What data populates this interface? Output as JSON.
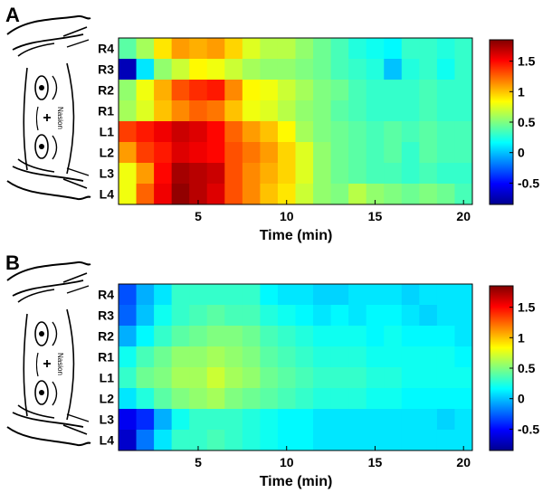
{
  "chart_data": [
    {
      "type": "heatmap",
      "panel_label": "A",
      "xlabel": "Time (min)",
      "x_ticks": [
        "5",
        "10",
        "15",
        "20"
      ],
      "x_range": [
        0.5,
        20.5
      ],
      "rows": [
        "R4",
        "R3",
        "R2",
        "R1",
        "L1",
        "L2",
        "L3",
        "L4"
      ],
      "colorbar": {
        "min": -0.85,
        "max": 1.85,
        "ticks": [
          "1.5",
          "1",
          "0.5",
          "0",
          "-0.5"
        ],
        "colormap": "jet"
      },
      "values": [
        [
          0.4,
          0.6,
          0.9,
          1.1,
          1.05,
          1.1,
          0.95,
          0.75,
          0.65,
          0.65,
          0.55,
          0.45,
          0.35,
          0.25,
          0.2,
          0.15,
          0.3,
          0.3,
          0.25,
          0.3
        ],
        [
          -0.7,
          0.1,
          0.55,
          0.7,
          0.85,
          0.8,
          0.7,
          0.6,
          0.55,
          0.55,
          0.5,
          0.45,
          0.35,
          0.3,
          0.25,
          0.0,
          0.25,
          0.3,
          0.2,
          0.3
        ],
        [
          0.55,
          0.8,
          1.05,
          1.3,
          1.4,
          1.45,
          1.15,
          0.85,
          0.8,
          0.7,
          0.6,
          0.5,
          0.45,
          0.35,
          0.3,
          0.3,
          0.3,
          0.35,
          0.3,
          0.3
        ],
        [
          0.6,
          0.75,
          1.0,
          1.15,
          1.25,
          1.2,
          1.0,
          0.8,
          0.75,
          0.65,
          0.55,
          0.5,
          0.4,
          0.35,
          0.3,
          0.3,
          0.3,
          0.35,
          0.3,
          0.3
        ],
        [
          1.35,
          1.45,
          1.55,
          1.65,
          1.6,
          1.5,
          1.25,
          1.1,
          1.0,
          0.85,
          0.6,
          0.5,
          0.45,
          0.4,
          0.35,
          0.4,
          0.35,
          0.4,
          0.35,
          0.35
        ],
        [
          1.1,
          1.35,
          1.45,
          1.6,
          1.55,
          1.5,
          1.3,
          1.2,
          1.1,
          0.95,
          0.75,
          0.55,
          0.45,
          0.4,
          0.35,
          0.4,
          0.3,
          0.4,
          0.35,
          0.35
        ],
        [
          0.8,
          1.1,
          1.5,
          1.75,
          1.7,
          1.65,
          1.3,
          1.15,
          1.05,
          0.95,
          0.75,
          0.55,
          0.45,
          0.4,
          0.35,
          0.35,
          0.3,
          0.35,
          0.3,
          0.3
        ],
        [
          0.8,
          1.25,
          1.55,
          1.8,
          1.7,
          1.6,
          1.3,
          1.15,
          1.0,
          0.9,
          0.7,
          0.55,
          0.5,
          0.65,
          0.55,
          0.5,
          0.45,
          0.5,
          0.45,
          0.35
        ]
      ]
    },
    {
      "type": "heatmap",
      "panel_label": "B",
      "xlabel": "Time (min)",
      "x_ticks": [
        "5",
        "10",
        "15",
        "20"
      ],
      "x_range": [
        0.5,
        20.5
      ],
      "rows": [
        "R4",
        "R3",
        "R2",
        "R1",
        "L1",
        "L2",
        "L3",
        "L4"
      ],
      "colorbar": {
        "min": -0.85,
        "max": 1.85,
        "ticks": [
          "1.5",
          "1",
          "0.5",
          "0",
          "-0.5"
        ],
        "colormap": "jet"
      },
      "values": [
        [
          -0.3,
          -0.05,
          0.1,
          0.3,
          0.3,
          0.3,
          0.3,
          0.3,
          0.15,
          0.1,
          0.1,
          0.05,
          0.05,
          0.1,
          0.1,
          0.1,
          0.05,
          0.1,
          0.1,
          0.1
        ],
        [
          -0.25,
          0.0,
          0.2,
          0.3,
          0.35,
          0.4,
          0.35,
          0.35,
          0.25,
          0.2,
          0.15,
          0.1,
          0.15,
          0.1,
          0.15,
          0.15,
          0.1,
          0.05,
          0.1,
          0.1
        ],
        [
          -0.05,
          0.15,
          0.3,
          0.4,
          0.45,
          0.5,
          0.5,
          0.45,
          0.35,
          0.3,
          0.25,
          0.2,
          0.2,
          0.2,
          0.15,
          0.2,
          0.15,
          0.15,
          0.15,
          0.1
        ],
        [
          0.2,
          0.35,
          0.45,
          0.55,
          0.55,
          0.6,
          0.55,
          0.5,
          0.4,
          0.35,
          0.3,
          0.25,
          0.25,
          0.25,
          0.2,
          0.2,
          0.2,
          0.2,
          0.2,
          0.15
        ],
        [
          0.3,
          0.45,
          0.5,
          0.6,
          0.6,
          0.7,
          0.6,
          0.55,
          0.45,
          0.4,
          0.35,
          0.3,
          0.3,
          0.3,
          0.25,
          0.25,
          0.2,
          0.2,
          0.2,
          0.2
        ],
        [
          0.1,
          0.25,
          0.4,
          0.5,
          0.55,
          0.6,
          0.5,
          0.45,
          0.4,
          0.35,
          0.3,
          0.25,
          0.25,
          0.25,
          0.2,
          0.2,
          0.15,
          0.15,
          0.15,
          0.15
        ],
        [
          -0.55,
          -0.4,
          -0.05,
          0.2,
          0.3,
          0.3,
          0.3,
          0.25,
          0.2,
          0.15,
          0.15,
          0.1,
          0.1,
          0.1,
          0.1,
          0.1,
          0.1,
          0.1,
          0.05,
          0.1
        ],
        [
          -0.65,
          -0.2,
          0.1,
          0.3,
          0.3,
          0.35,
          0.3,
          0.25,
          0.2,
          0.15,
          0.15,
          0.1,
          0.1,
          0.1,
          0.1,
          0.1,
          0.1,
          0.1,
          0.1,
          0.1
        ]
      ]
    }
  ]
}
